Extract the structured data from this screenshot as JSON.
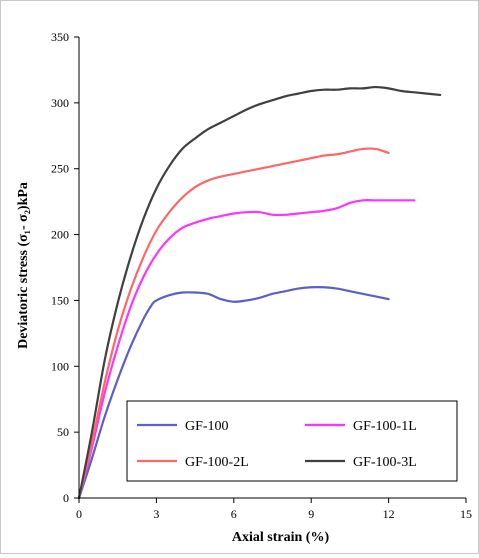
{
  "chart_data": {
    "type": "line",
    "xlabel": "Axial strain (%)",
    "ylabel": "Deviatoric stress (σ₁- σ₂)kPa",
    "xlim": [
      0,
      15
    ],
    "ylim": [
      0,
      350
    ],
    "xticks": [
      0,
      3,
      6,
      9,
      12,
      15
    ],
    "yticks": [
      0,
      50,
      100,
      150,
      200,
      250,
      300,
      350
    ],
    "grid": false,
    "legend_placement": "bottom-center",
    "series": [
      {
        "name": "GF-100",
        "color": "#5b5fc7",
        "x": [
          0,
          0.5,
          1,
          1.5,
          2,
          2.5,
          2.8,
          3.0,
          3.5,
          4,
          4.5,
          5,
          5.5,
          6,
          6.5,
          7,
          7.5,
          8,
          8.5,
          9,
          9.5,
          10,
          10.5,
          11,
          11.5,
          12
        ],
        "y": [
          0,
          30,
          62,
          90,
          115,
          136,
          146,
          150,
          154,
          156,
          156,
          155,
          151,
          149,
          150,
          152,
          155,
          157,
          159,
          160,
          160,
          159,
          157,
          155,
          153,
          151
        ]
      },
      {
        "name": "GF-100-1L",
        "color": "#ff33ff",
        "x": [
          0,
          0.5,
          1,
          1.5,
          2,
          2.5,
          3,
          3.5,
          4,
          4.5,
          5,
          5.5,
          6,
          6.5,
          7,
          7.5,
          8,
          8.5,
          9,
          9.5,
          10,
          10.5,
          11,
          11.5,
          12,
          12.5,
          13
        ],
        "y": [
          0,
          38,
          80,
          115,
          145,
          168,
          185,
          197,
          205,
          209,
          212,
          214,
          216,
          217,
          217,
          215,
          215,
          216,
          217,
          218,
          220,
          224,
          226,
          226,
          226,
          226,
          226
        ]
      },
      {
        "name": "GF-100-2L",
        "color": "#ff6666",
        "x": [
          0,
          0.5,
          1,
          1.5,
          2,
          2.5,
          3,
          3.5,
          4,
          4.5,
          5,
          5.5,
          6,
          6.5,
          7,
          7.5,
          8,
          8.5,
          9,
          9.5,
          10,
          10.5,
          11,
          11.5,
          12
        ],
        "y": [
          0,
          42,
          88,
          127,
          158,
          183,
          203,
          217,
          228,
          236,
          241,
          244,
          246,
          248,
          250,
          252,
          254,
          256,
          258,
          260,
          261,
          263,
          265,
          265,
          262
        ]
      },
      {
        "name": "GF-100-3L",
        "color": "#404040",
        "x": [
          0,
          0.5,
          1,
          1.5,
          2,
          2.5,
          3,
          3.5,
          4,
          4.5,
          5,
          5.5,
          6,
          6.5,
          7,
          7.5,
          8,
          8.5,
          9,
          9.5,
          10,
          10.5,
          11,
          11.5,
          12,
          12.5,
          13,
          13.5,
          14
        ],
        "y": [
          0,
          50,
          105,
          148,
          183,
          212,
          235,
          252,
          265,
          273,
          280,
          285,
          290,
          295,
          299,
          302,
          305,
          307,
          309,
          310,
          310,
          311,
          311,
          312,
          311,
          309,
          308,
          307,
          306
        ]
      }
    ]
  }
}
